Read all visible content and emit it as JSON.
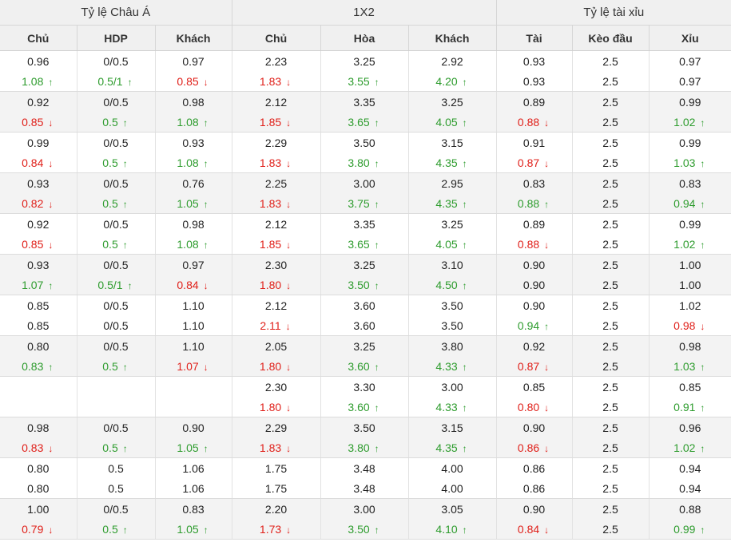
{
  "groups": [
    "Tỷ lệ Châu Á",
    "1X2",
    "Tỷ lệ tài xỉu"
  ],
  "columns": [
    "Chủ",
    "HDP",
    "Khách",
    "Chủ",
    "Hòa",
    "Khách",
    "Tài",
    "Kèo đầu",
    "Xỉu"
  ],
  "arrows": {
    "up": "↑",
    "down": "↓"
  },
  "colors": {
    "up": "#2e9c2e",
    "down": "#e0201a",
    "header_bg": "#f0f0f0",
    "alt_row_bg": "#f3f3f3"
  },
  "rows": [
    {
      "open": [
        "0.96",
        "0/0.5",
        "0.97",
        "2.23",
        "3.25",
        "2.92",
        "0.93",
        "2.5",
        "0.97"
      ],
      "live": [
        [
          "1.08",
          "up"
        ],
        [
          "0.5/1",
          "up"
        ],
        [
          "0.85",
          "down"
        ],
        [
          "1.83",
          "down"
        ],
        [
          "3.55",
          "up"
        ],
        [
          "4.20",
          "up"
        ],
        [
          "0.93",
          ""
        ],
        [
          "2.5",
          ""
        ],
        [
          "0.97",
          ""
        ]
      ]
    },
    {
      "open": [
        "0.92",
        "0/0.5",
        "0.98",
        "2.12",
        "3.35",
        "3.25",
        "0.89",
        "2.5",
        "0.99"
      ],
      "live": [
        [
          "0.85",
          "down"
        ],
        [
          "0.5",
          "up"
        ],
        [
          "1.08",
          "up"
        ],
        [
          "1.85",
          "down"
        ],
        [
          "3.65",
          "up"
        ],
        [
          "4.05",
          "up"
        ],
        [
          "0.88",
          "down"
        ],
        [
          "2.5",
          ""
        ],
        [
          "1.02",
          "up"
        ]
      ]
    },
    {
      "open": [
        "0.99",
        "0/0.5",
        "0.93",
        "2.29",
        "3.50",
        "3.15",
        "0.91",
        "2.5",
        "0.99"
      ],
      "live": [
        [
          "0.84",
          "down"
        ],
        [
          "0.5",
          "up"
        ],
        [
          "1.08",
          "up"
        ],
        [
          "1.83",
          "down"
        ],
        [
          "3.80",
          "up"
        ],
        [
          "4.35",
          "up"
        ],
        [
          "0.87",
          "down"
        ],
        [
          "2.5",
          ""
        ],
        [
          "1.03",
          "up"
        ]
      ]
    },
    {
      "open": [
        "0.93",
        "0/0.5",
        "0.76",
        "2.25",
        "3.00",
        "2.95",
        "0.83",
        "2.5",
        "0.83"
      ],
      "live": [
        [
          "0.82",
          "down"
        ],
        [
          "0.5",
          "up"
        ],
        [
          "1.05",
          "up"
        ],
        [
          "1.83",
          "down"
        ],
        [
          "3.75",
          "up"
        ],
        [
          "4.35",
          "up"
        ],
        [
          "0.88",
          "up"
        ],
        [
          "2.5",
          ""
        ],
        [
          "0.94",
          "up"
        ]
      ]
    },
    {
      "open": [
        "0.92",
        "0/0.5",
        "0.98",
        "2.12",
        "3.35",
        "3.25",
        "0.89",
        "2.5",
        "0.99"
      ],
      "live": [
        [
          "0.85",
          "down"
        ],
        [
          "0.5",
          "up"
        ],
        [
          "1.08",
          "up"
        ],
        [
          "1.85",
          "down"
        ],
        [
          "3.65",
          "up"
        ],
        [
          "4.05",
          "up"
        ],
        [
          "0.88",
          "down"
        ],
        [
          "2.5",
          ""
        ],
        [
          "1.02",
          "up"
        ]
      ]
    },
    {
      "open": [
        "0.93",
        "0/0.5",
        "0.97",
        "2.30",
        "3.25",
        "3.10",
        "0.90",
        "2.5",
        "1.00"
      ],
      "live": [
        [
          "1.07",
          "up"
        ],
        [
          "0.5/1",
          "up"
        ],
        [
          "0.84",
          "down"
        ],
        [
          "1.80",
          "down"
        ],
        [
          "3.50",
          "up"
        ],
        [
          "4.50",
          "up"
        ],
        [
          "0.90",
          ""
        ],
        [
          "2.5",
          ""
        ],
        [
          "1.00",
          ""
        ]
      ]
    },
    {
      "open": [
        "0.85",
        "0/0.5",
        "1.10",
        "2.12",
        "3.60",
        "3.50",
        "0.90",
        "2.5",
        "1.02"
      ],
      "live": [
        [
          "0.85",
          ""
        ],
        [
          "0/0.5",
          ""
        ],
        [
          "1.10",
          ""
        ],
        [
          "2.11",
          "down"
        ],
        [
          "3.60",
          ""
        ],
        [
          "3.50",
          ""
        ],
        [
          "0.94",
          "up"
        ],
        [
          "2.5",
          ""
        ],
        [
          "0.98",
          "down"
        ]
      ]
    },
    {
      "open": [
        "0.80",
        "0/0.5",
        "1.10",
        "2.05",
        "3.25",
        "3.80",
        "0.92",
        "2.5",
        "0.98"
      ],
      "live": [
        [
          "0.83",
          "up"
        ],
        [
          "0.5",
          "up"
        ],
        [
          "1.07",
          "down"
        ],
        [
          "1.80",
          "down"
        ],
        [
          "3.60",
          "up"
        ],
        [
          "4.33",
          "up"
        ],
        [
          "0.87",
          "down"
        ],
        [
          "2.5",
          ""
        ],
        [
          "1.03",
          "up"
        ]
      ]
    },
    {
      "open": [
        "",
        "",
        "",
        "2.30",
        "3.30",
        "3.00",
        "0.85",
        "2.5",
        "0.85"
      ],
      "live": [
        [
          "",
          ""
        ],
        [
          "",
          ""
        ],
        [
          "",
          ""
        ],
        [
          "1.80",
          "down"
        ],
        [
          "3.60",
          "up"
        ],
        [
          "4.33",
          "up"
        ],
        [
          "0.80",
          "down"
        ],
        [
          "2.5",
          ""
        ],
        [
          "0.91",
          "up"
        ]
      ]
    },
    {
      "open": [
        "0.98",
        "0/0.5",
        "0.90",
        "2.29",
        "3.50",
        "3.15",
        "0.90",
        "2.5",
        "0.96"
      ],
      "live": [
        [
          "0.83",
          "down"
        ],
        [
          "0.5",
          "up"
        ],
        [
          "1.05",
          "up"
        ],
        [
          "1.83",
          "down"
        ],
        [
          "3.80",
          "up"
        ],
        [
          "4.35",
          "up"
        ],
        [
          "0.86",
          "down"
        ],
        [
          "2.5",
          ""
        ],
        [
          "1.02",
          "up"
        ]
      ]
    },
    {
      "open": [
        "0.80",
        "0.5",
        "1.06",
        "1.75",
        "3.48",
        "4.00",
        "0.86",
        "2.5",
        "0.94"
      ],
      "live": [
        [
          "0.80",
          ""
        ],
        [
          "0.5",
          ""
        ],
        [
          "1.06",
          ""
        ],
        [
          "1.75",
          ""
        ],
        [
          "3.48",
          ""
        ],
        [
          "4.00",
          ""
        ],
        [
          "0.86",
          ""
        ],
        [
          "2.5",
          ""
        ],
        [
          "0.94",
          ""
        ]
      ]
    },
    {
      "open": [
        "1.00",
        "0/0.5",
        "0.83",
        "2.20",
        "3.00",
        "3.05",
        "0.90",
        "2.5",
        "0.88"
      ],
      "live": [
        [
          "0.79",
          "down"
        ],
        [
          "0.5",
          "up"
        ],
        [
          "1.05",
          "up"
        ],
        [
          "1.73",
          "down"
        ],
        [
          "3.50",
          "up"
        ],
        [
          "4.10",
          "up"
        ],
        [
          "0.84",
          "down"
        ],
        [
          "2.5",
          ""
        ],
        [
          "0.99",
          "up"
        ]
      ]
    }
  ]
}
